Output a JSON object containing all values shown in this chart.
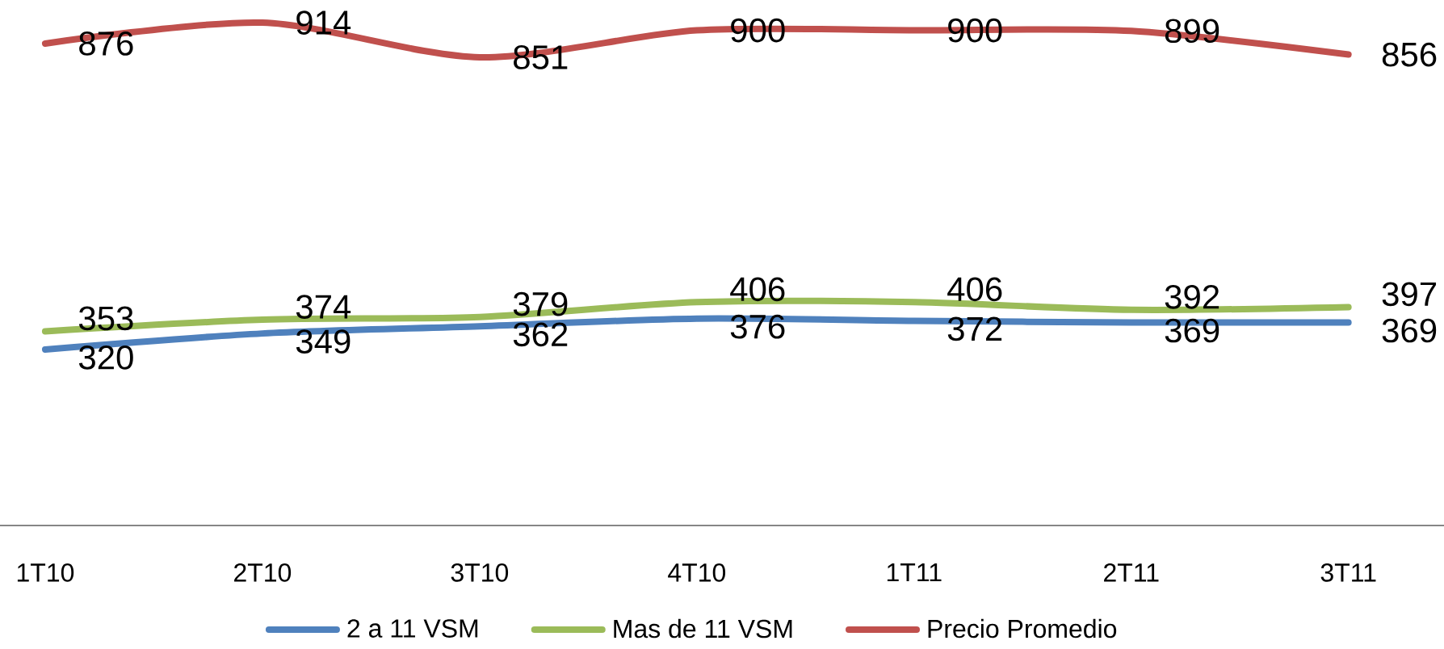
{
  "chart_data": {
    "type": "line",
    "categories": [
      "1T10",
      "2T10",
      "3T10",
      "4T10",
      "1T11",
      "2T11",
      "3T11"
    ],
    "series": [
      {
        "name": "2 a 11 VSM",
        "color": "#4f81bd",
        "values": [
          320,
          349,
          362,
          376,
          372,
          369,
          369
        ]
      },
      {
        "name": "Mas de 11 VSM",
        "color": "#9bbb59",
        "values": [
          353,
          374,
          379,
          406,
          406,
          392,
          397
        ]
      },
      {
        "name": "Precio Promedio",
        "color": "#c0504d",
        "values": [
          876,
          914,
          851,
          900,
          900,
          899,
          856
        ]
      }
    ],
    "tick_labels": "x",
    "data_labels": true,
    "legend": "bottom",
    "marker": "none",
    "line_style": "solid"
  }
}
